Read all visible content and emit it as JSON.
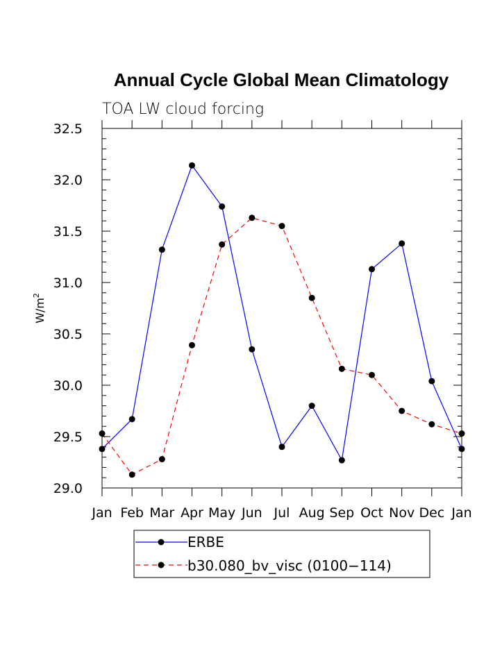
{
  "chart_data": {
    "type": "line",
    "title": "Annual Cycle Global Mean Climatology",
    "subtitle": "TOA LW cloud forcing",
    "xlabel": "",
    "ylabel_base": "W/m",
    "ylabel_sup": "2",
    "ylim": [
      29.0,
      32.5
    ],
    "yticks": [
      "29.0",
      "29.5",
      "30.0",
      "30.5",
      "31.0",
      "31.5",
      "32.0",
      "32.5"
    ],
    "ytick_values": [
      29.0,
      29.5,
      30.0,
      30.5,
      31.0,
      31.5,
      32.0,
      32.5
    ],
    "categories": [
      "Jan",
      "Feb",
      "Mar",
      "Apr",
      "May",
      "Jun",
      "Jul",
      "Aug",
      "Sep",
      "Oct",
      "Nov",
      "Dec",
      "Jan"
    ],
    "series": [
      {
        "name": "ERBE",
        "color": "#0000ff",
        "dash": "solid",
        "values": [
          29.38,
          29.67,
          31.32,
          32.14,
          31.74,
          30.35,
          29.4,
          29.8,
          29.27,
          31.13,
          31.38,
          30.04,
          29.38
        ]
      },
      {
        "name": "b30.080_bv_visc (0100−114)",
        "color": "#ff0000",
        "dash": "dashed",
        "values": [
          29.53,
          29.13,
          29.28,
          30.39,
          31.37,
          31.63,
          31.55,
          30.85,
          30.16,
          30.1,
          29.75,
          29.62,
          29.53
        ]
      }
    ],
    "legend_position": "bottom-center",
    "grid": false
  }
}
